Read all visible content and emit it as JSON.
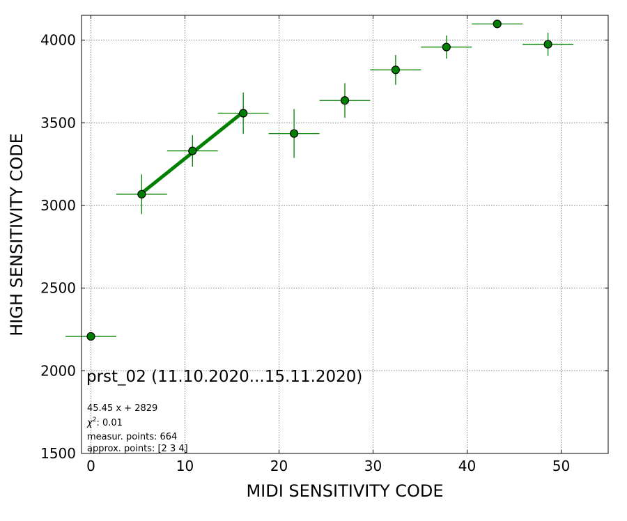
{
  "chart_data": {
    "type": "scatter",
    "xlabel": "MIDI SENSITIVITY CODE",
    "ylabel": "HIGH SENSITIVITY CODE",
    "xlim": [
      -1,
      55
    ],
    "ylim": [
      1500,
      4150
    ],
    "xticks": [
      0,
      10,
      20,
      30,
      40,
      50
    ],
    "yticks": [
      1500,
      2000,
      2500,
      3000,
      3500,
      4000
    ],
    "grid": true,
    "color": "#008000",
    "points": [
      {
        "x": 0.0,
        "y": 2208,
        "xerr": 2.7,
        "yerr": 0
      },
      {
        "x": 5.4,
        "y": 3068,
        "xerr": 2.7,
        "yerr": 120
      },
      {
        "x": 10.8,
        "y": 3330,
        "xerr": 2.7,
        "yerr": 95
      },
      {
        "x": 16.2,
        "y": 3558,
        "xerr": 2.7,
        "yerr": 125
      },
      {
        "x": 21.6,
        "y": 3435,
        "xerr": 2.7,
        "yerr": 148
      },
      {
        "x": 27.0,
        "y": 3635,
        "xerr": 2.7,
        "yerr": 105
      },
      {
        "x": 32.4,
        "y": 3820,
        "xerr": 2.7,
        "yerr": 90
      },
      {
        "x": 37.8,
        "y": 3958,
        "xerr": 2.7,
        "yerr": 70
      },
      {
        "x": 43.2,
        "y": 4098,
        "xerr": 2.7,
        "yerr": 0
      },
      {
        "x": 48.6,
        "y": 3975,
        "xerr": 2.7,
        "yerr": 70
      }
    ],
    "fit": {
      "slope": 45.45,
      "intercept": 2829,
      "x_range": [
        5.4,
        16.2
      ]
    },
    "annotations": {
      "title": "prst_02 (11.10.2020...15.11.2020)",
      "fit_text": "45.45 x + 2829",
      "chi_label": "χ",
      "chi_sup": "2",
      "chi_value": ": 0.01",
      "measur": "measur. points: 664",
      "approx": "approx. points: [2 3 4]"
    }
  }
}
